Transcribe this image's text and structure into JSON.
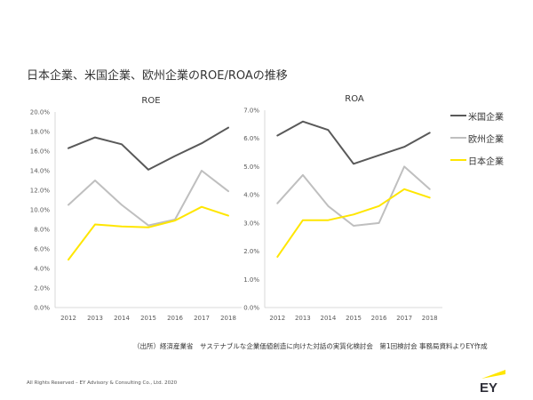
{
  "title": "日本企業、米国企業、欧州企業のROE/ROAの推移",
  "legend": [
    {
      "name": "米国企業",
      "color": "#595959"
    },
    {
      "name": "欧州企業",
      "color": "#bfbfbf"
    },
    {
      "name": "日本企業",
      "color": "#ffe600"
    }
  ],
  "chart_data": [
    {
      "type": "line",
      "title": "ROE",
      "categories": [
        "2012",
        "2013",
        "2014",
        "2015",
        "2016",
        "2017",
        "2018"
      ],
      "ylim": [
        0,
        20
      ],
      "yticks": [
        "0.0%",
        "2.0%",
        "4.0%",
        "6.0%",
        "8.0%",
        "10.0%",
        "12.0%",
        "14.0%",
        "16.0%",
        "18.0%",
        "20.0%"
      ],
      "grid": false,
      "legend": "right",
      "series": [
        {
          "name": "米国企業",
          "color": "#595959",
          "values": [
            16.3,
            17.4,
            16.7,
            14.1,
            15.5,
            16.8,
            18.4
          ]
        },
        {
          "name": "欧州企業",
          "color": "#bfbfbf",
          "values": [
            10.5,
            13.0,
            10.5,
            8.4,
            9.0,
            14.0,
            11.9
          ]
        },
        {
          "name": "日本企業",
          "color": "#ffe600",
          "values": [
            4.9,
            8.5,
            8.3,
            8.2,
            8.9,
            10.3,
            9.4
          ]
        }
      ]
    },
    {
      "type": "line",
      "title": "ROA",
      "categories": [
        "2012",
        "2013",
        "2014",
        "2015",
        "2016",
        "2017",
        "2018"
      ],
      "ylim": [
        0,
        7
      ],
      "yticks": [
        "0.0%",
        "1.0%",
        "2.0%",
        "3.0%",
        "4.0%",
        "5.0%",
        "6.0%",
        "7.0%"
      ],
      "grid": false,
      "legend": "right",
      "series": [
        {
          "name": "米国企業",
          "color": "#595959",
          "values": [
            6.1,
            6.6,
            6.3,
            5.1,
            5.4,
            5.7,
            6.2
          ]
        },
        {
          "name": "欧州企業",
          "color": "#bfbfbf",
          "values": [
            3.7,
            4.7,
            3.6,
            2.9,
            3.0,
            5.0,
            4.2
          ]
        },
        {
          "name": "日本企業",
          "color": "#ffe600",
          "values": [
            1.8,
            3.1,
            3.1,
            3.3,
            3.6,
            4.2,
            3.9
          ]
        }
      ]
    }
  ],
  "source": "（出所）経済産業省　サステナブルな企業価値創造に向けた対話の実質化検討会　第1回検討会 事務局資料よりEY作成",
  "footer": "All Rights Reserved – EY Advisory & Consulting Co., Ltd. 2020",
  "logo": {
    "text": "EY",
    "accent": "#ffe600",
    "color": "#2e2e38"
  }
}
